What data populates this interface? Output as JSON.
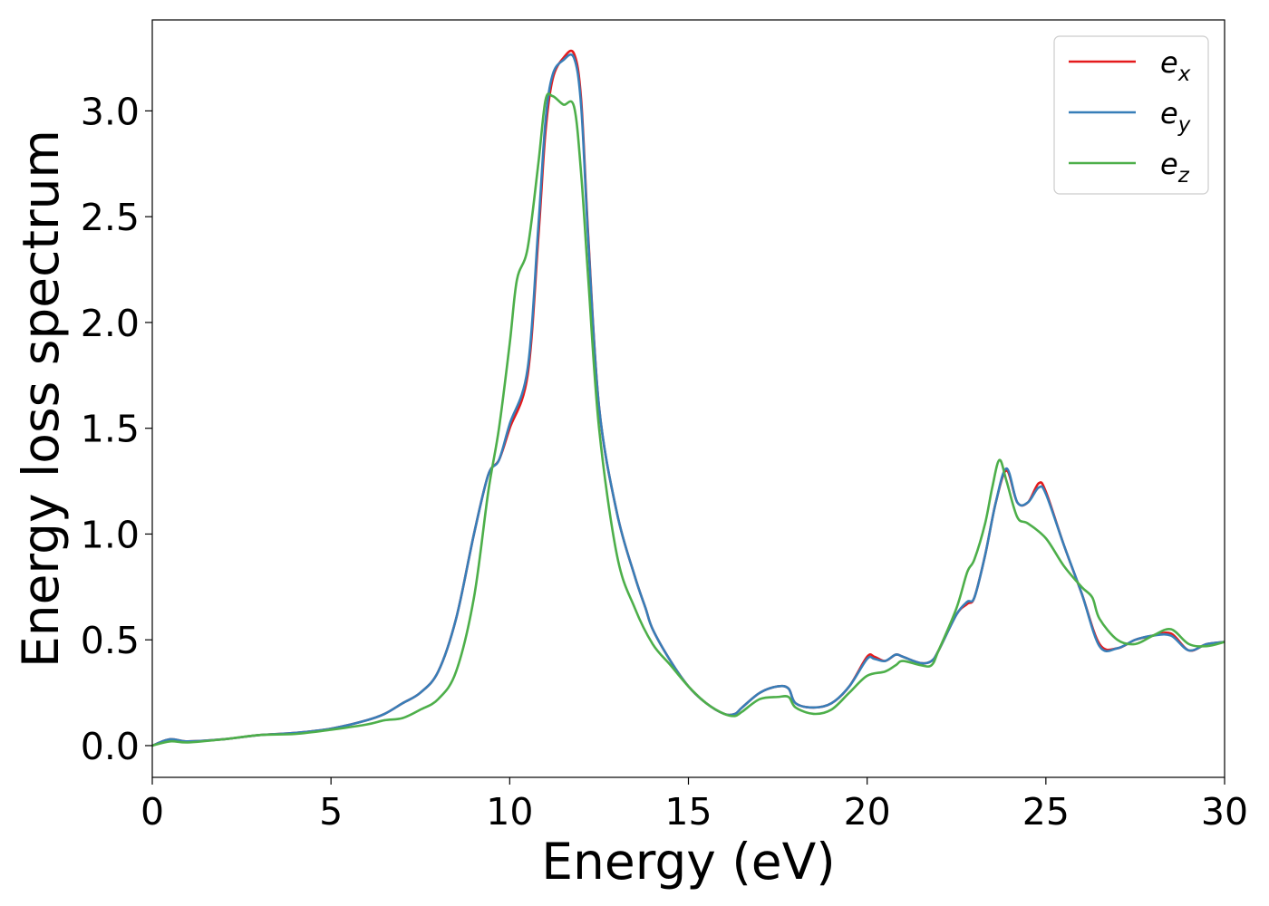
{
  "chart_data": {
    "type": "line",
    "xlabel": "Energy (eV)",
    "ylabel": "Energy loss spectrum",
    "xlim": [
      0,
      30
    ],
    "ylim": [
      -0.15,
      3.43
    ],
    "xticks": [
      0,
      5,
      10,
      15,
      20,
      25,
      30
    ],
    "xtick_labels": [
      "0",
      "5",
      "10",
      "15",
      "20",
      "25",
      "30"
    ],
    "yticks": [
      0.0,
      0.5,
      1.0,
      1.5,
      2.0,
      2.5,
      3.0
    ],
    "ytick_labels": [
      "0.0",
      "0.5",
      "1.0",
      "1.5",
      "2.0",
      "2.5",
      "3.0"
    ],
    "grid": false,
    "legend_position": "top-right",
    "series": [
      {
        "name": "e",
        "subscript": "x",
        "color": "#e41a1c",
        "x": [
          0,
          0.5,
          1.0,
          2.0,
          3.0,
          4.0,
          5.0,
          6.0,
          6.5,
          7.0,
          7.5,
          8.0,
          8.5,
          9.0,
          9.4,
          9.7,
          10.0,
          10.5,
          10.8,
          11.0,
          11.2,
          11.5,
          11.8,
          12.0,
          12.2,
          12.5,
          13.0,
          13.5,
          13.8,
          14.0,
          14.5,
          15.0,
          15.5,
          16.0,
          16.3,
          16.5,
          17.0,
          17.5,
          17.8,
          18.0,
          18.5,
          19.0,
          19.5,
          20.0,
          20.2,
          20.5,
          20.8,
          21.0,
          21.5,
          21.8,
          22.0,
          22.5,
          22.8,
          23.0,
          23.3,
          23.6,
          23.9,
          24.2,
          24.5,
          24.8,
          25.0,
          25.5,
          26.0,
          26.5,
          27.0,
          27.5,
          28.0,
          28.5,
          29.0,
          29.5,
          30.0
        ],
        "y": [
          0.0,
          0.03,
          0.02,
          0.03,
          0.05,
          0.06,
          0.08,
          0.12,
          0.15,
          0.2,
          0.25,
          0.35,
          0.6,
          1.0,
          1.28,
          1.35,
          1.5,
          1.75,
          2.4,
          2.9,
          3.15,
          3.25,
          3.27,
          3.05,
          2.4,
          1.6,
          1.1,
          0.8,
          0.65,
          0.55,
          0.4,
          0.28,
          0.2,
          0.15,
          0.15,
          0.18,
          0.25,
          0.28,
          0.27,
          0.2,
          0.18,
          0.2,
          0.28,
          0.42,
          0.42,
          0.4,
          0.43,
          0.42,
          0.39,
          0.4,
          0.45,
          0.62,
          0.67,
          0.7,
          0.9,
          1.15,
          1.3,
          1.15,
          1.15,
          1.24,
          1.2,
          0.95,
          0.72,
          0.48,
          0.46,
          0.5,
          0.52,
          0.53,
          0.45,
          0.48,
          0.49
        ]
      },
      {
        "name": "e",
        "subscript": "y",
        "color": "#377eb8",
        "x": [
          0,
          0.5,
          1.0,
          2.0,
          3.0,
          4.0,
          5.0,
          6.0,
          6.5,
          7.0,
          7.5,
          8.0,
          8.5,
          9.0,
          9.4,
          9.7,
          10.0,
          10.5,
          10.8,
          11.0,
          11.2,
          11.5,
          11.8,
          12.0,
          12.2,
          12.5,
          13.0,
          13.5,
          13.8,
          14.0,
          14.5,
          15.0,
          15.5,
          16.0,
          16.3,
          16.5,
          17.0,
          17.5,
          17.8,
          18.0,
          18.5,
          19.0,
          19.5,
          20.0,
          20.2,
          20.5,
          20.8,
          21.0,
          21.5,
          21.8,
          22.0,
          22.5,
          22.8,
          23.0,
          23.3,
          23.6,
          23.9,
          24.2,
          24.5,
          24.8,
          25.0,
          25.5,
          26.0,
          26.5,
          27.0,
          27.5,
          28.0,
          28.5,
          29.0,
          29.5,
          30.0
        ],
        "y": [
          0.0,
          0.03,
          0.02,
          0.03,
          0.05,
          0.06,
          0.08,
          0.12,
          0.15,
          0.2,
          0.25,
          0.35,
          0.6,
          1.0,
          1.28,
          1.35,
          1.52,
          1.78,
          2.45,
          2.95,
          3.17,
          3.24,
          3.25,
          3.02,
          2.38,
          1.6,
          1.1,
          0.8,
          0.65,
          0.55,
          0.4,
          0.28,
          0.2,
          0.15,
          0.15,
          0.18,
          0.25,
          0.28,
          0.27,
          0.2,
          0.18,
          0.2,
          0.28,
          0.41,
          0.41,
          0.4,
          0.43,
          0.42,
          0.39,
          0.4,
          0.45,
          0.62,
          0.68,
          0.7,
          0.9,
          1.15,
          1.31,
          1.15,
          1.15,
          1.22,
          1.19,
          0.95,
          0.72,
          0.47,
          0.46,
          0.5,
          0.52,
          0.52,
          0.45,
          0.48,
          0.49
        ]
      },
      {
        "name": "e",
        "subscript": "z",
        "color": "#4daf4a",
        "x": [
          0,
          0.5,
          1.0,
          2.0,
          3.0,
          4.0,
          5.0,
          6.0,
          6.5,
          7.0,
          7.5,
          8.0,
          8.5,
          9.0,
          9.4,
          9.7,
          10.0,
          10.2,
          10.5,
          10.8,
          11.0,
          11.2,
          11.5,
          11.8,
          12.0,
          12.2,
          12.5,
          13.0,
          13.5,
          14.0,
          14.5,
          15.0,
          15.5,
          16.0,
          16.3,
          16.5,
          17.0,
          17.5,
          17.8,
          18.0,
          18.5,
          19.0,
          19.5,
          20.0,
          20.5,
          20.8,
          21.0,
          21.5,
          21.8,
          22.0,
          22.5,
          22.8,
          23.0,
          23.3,
          23.5,
          23.7,
          23.9,
          24.2,
          24.5,
          25.0,
          25.5,
          26.0,
          26.3,
          26.5,
          27.0,
          27.5,
          28.0,
          28.5,
          29.0,
          29.5,
          30.0
        ],
        "y": [
          0.0,
          0.02,
          0.015,
          0.03,
          0.05,
          0.055,
          0.075,
          0.1,
          0.12,
          0.13,
          0.17,
          0.22,
          0.35,
          0.7,
          1.2,
          1.5,
          1.9,
          2.2,
          2.35,
          2.75,
          3.05,
          3.07,
          3.03,
          3.02,
          2.7,
          2.2,
          1.5,
          0.9,
          0.65,
          0.48,
          0.38,
          0.28,
          0.2,
          0.15,
          0.14,
          0.16,
          0.22,
          0.23,
          0.23,
          0.18,
          0.15,
          0.17,
          0.25,
          0.33,
          0.35,
          0.38,
          0.4,
          0.38,
          0.38,
          0.45,
          0.65,
          0.82,
          0.88,
          1.05,
          1.22,
          1.35,
          1.25,
          1.08,
          1.05,
          0.98,
          0.85,
          0.75,
          0.7,
          0.6,
          0.5,
          0.48,
          0.52,
          0.55,
          0.48,
          0.47,
          0.49
        ]
      }
    ]
  }
}
